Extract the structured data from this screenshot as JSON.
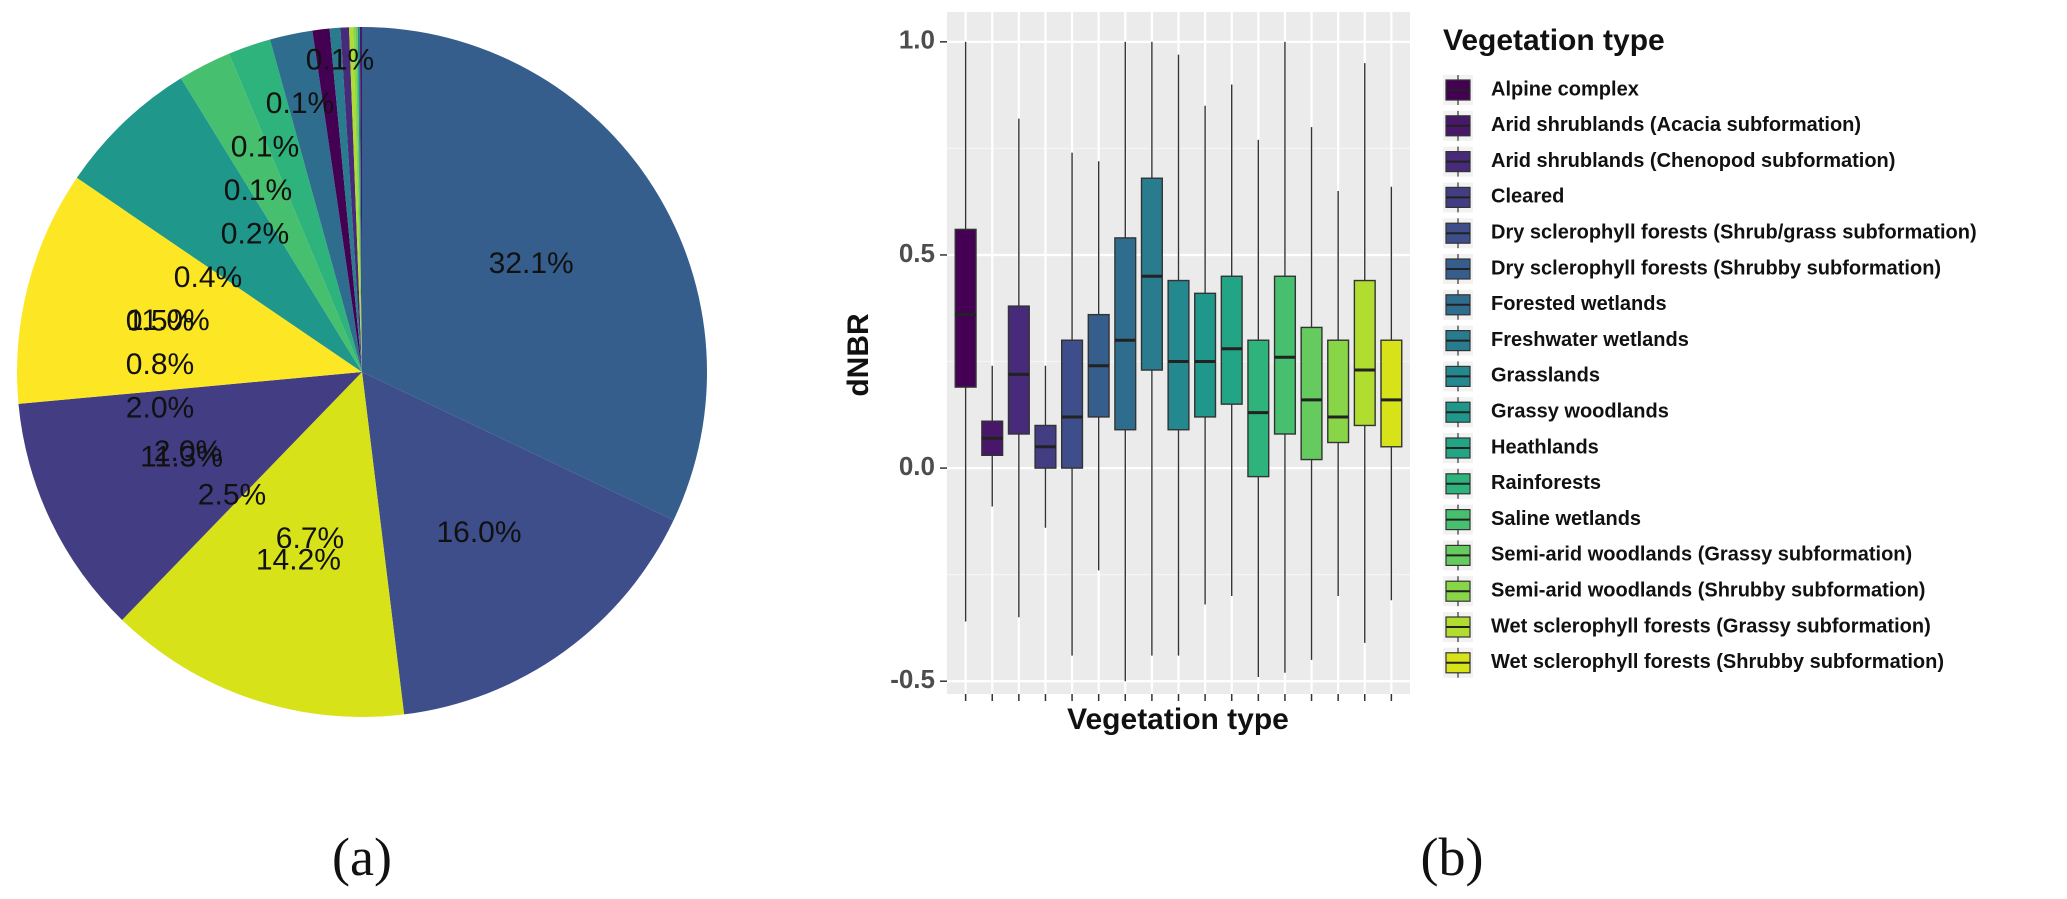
{
  "panels": {
    "a_label": "(a)",
    "b_label": "(b)"
  },
  "legend_title": "Vegetation type",
  "vegetation_types": [
    "Alpine complex",
    "Arid shrublands (Acacia subformation)",
    "Arid shrublands (Chenopod subformation)",
    "Cleared",
    "Dry sclerophyll forests (Shrub/grass subformation)",
    "Dry sclerophyll forests (Shrubby subformation)",
    "Forested wetlands",
    "Freshwater wetlands",
    "Grasslands",
    "Grassy woodlands",
    "Heathlands",
    "Rainforests",
    "Saline  wetlands",
    "Semi-arid woodlands (Grassy subformation)",
    "Semi-arid woodlands (Shrubby subformation)",
    "Wet sclerophyll forests (Grassy subformation)",
    "Wet sclerophyll forests (Shrubby subformation)"
  ],
  "palette": [
    "#440154",
    "#481769",
    "#472A7A",
    "#433D84",
    "#3D4E8A",
    "#355E8D",
    "#2E6D8E",
    "#297B8E",
    "#23898E",
    "#1F978B",
    "#21A585",
    "#2EB37C",
    "#46C06F",
    "#65CB5E",
    "#89D548",
    "#B0DD2F",
    "#D8E219"
  ],
  "chart_data": [
    {
      "type": "pie",
      "panel": "a",
      "slices": [
        {
          "label": "32.1%",
          "value": 32.1,
          "color": "#355E8D"
        },
        {
          "label": "16.0%",
          "value": 16.0,
          "color": "#3D4E8A"
        },
        {
          "label": "14.2%",
          "value": 14.2,
          "color": "#D8E219"
        },
        {
          "label": "11.3%",
          "value": 11.3,
          "color": "#433D84"
        },
        {
          "label": "11.0%",
          "value": 11.0,
          "color": "#FDE725"
        },
        {
          "label": "6.7%",
          "value": 6.7,
          "color": "#1F978B"
        },
        {
          "label": "2.5%",
          "value": 2.5,
          "color": "#46C06F"
        },
        {
          "label": "2.0%",
          "value": 2.0,
          "color": "#2EB37C"
        },
        {
          "label": "2.0%",
          "value": 2.0,
          "color": "#2E6D8E"
        },
        {
          "label": "0.8%",
          "value": 0.8,
          "color": "#440154"
        },
        {
          "label": "0.5%",
          "value": 0.5,
          "color": "#297B8E"
        },
        {
          "label": "0.4%",
          "value": 0.4,
          "color": "#472A7A"
        },
        {
          "label": "0.2%",
          "value": 0.2,
          "color": "#B0DD2F"
        },
        {
          "label": "0.1%",
          "value": 0.1,
          "color": "#89D548"
        },
        {
          "label": "0.1%",
          "value": 0.1,
          "color": "#65CB5E"
        },
        {
          "label": "0.1%",
          "value": 0.1,
          "color": "#23898E"
        },
        {
          "label": "0.1%",
          "value": 0.1,
          "color": "#481769"
        }
      ]
    },
    {
      "type": "box",
      "panel": "b",
      "xlabel": "Vegetation type",
      "ylabel": "dNBR",
      "ylim": [
        -0.53,
        1.07
      ],
      "yticks": [
        -0.5,
        0.0,
        0.5,
        1.0
      ],
      "ytick_labels": [
        "-0.5",
        "0.0",
        "0.5",
        "1.0"
      ],
      "boxes": [
        {
          "whisker_low": -0.36,
          "q1": 0.19,
          "median": 0.36,
          "q3": 0.56,
          "whisker_high": 1.0
        },
        {
          "whisker_low": -0.09,
          "q1": 0.03,
          "median": 0.07,
          "q3": 0.11,
          "whisker_high": 0.24
        },
        {
          "whisker_low": -0.35,
          "q1": 0.08,
          "median": 0.22,
          "q3": 0.38,
          "whisker_high": 0.82
        },
        {
          "whisker_low": -0.14,
          "q1": 0.0,
          "median": 0.05,
          "q3": 0.1,
          "whisker_high": 0.24
        },
        {
          "whisker_low": -0.44,
          "q1": 0.0,
          "median": 0.12,
          "q3": 0.3,
          "whisker_high": 0.74
        },
        {
          "whisker_low": -0.24,
          "q1": 0.12,
          "median": 0.24,
          "q3": 0.36,
          "whisker_high": 0.72
        },
        {
          "whisker_low": -0.5,
          "q1": 0.09,
          "median": 0.3,
          "q3": 0.54,
          "whisker_high": 1.0
        },
        {
          "whisker_low": -0.44,
          "q1": 0.23,
          "median": 0.45,
          "q3": 0.68,
          "whisker_high": 1.0
        },
        {
          "whisker_low": -0.44,
          "q1": 0.09,
          "median": 0.25,
          "q3": 0.44,
          "whisker_high": 0.97
        },
        {
          "whisker_low": -0.32,
          "q1": 0.12,
          "median": 0.25,
          "q3": 0.41,
          "whisker_high": 0.85
        },
        {
          "whisker_low": -0.3,
          "q1": 0.15,
          "median": 0.28,
          "q3": 0.45,
          "whisker_high": 0.9
        },
        {
          "whisker_low": -0.49,
          "q1": -0.02,
          "median": 0.13,
          "q3": 0.3,
          "whisker_high": 0.77
        },
        {
          "whisker_low": -0.48,
          "q1": 0.08,
          "median": 0.26,
          "q3": 0.45,
          "whisker_high": 1.0
        },
        {
          "whisker_low": -0.45,
          "q1": 0.02,
          "median": 0.16,
          "q3": 0.33,
          "whisker_high": 0.8
        },
        {
          "whisker_low": -0.3,
          "q1": 0.06,
          "median": 0.12,
          "q3": 0.3,
          "whisker_high": 0.65
        },
        {
          "whisker_low": -0.41,
          "q1": 0.1,
          "median": 0.23,
          "q3": 0.44,
          "whisker_high": 0.95
        },
        {
          "whisker_low": -0.31,
          "q1": 0.05,
          "median": 0.16,
          "q3": 0.3,
          "whisker_high": 0.66
        }
      ]
    }
  ]
}
